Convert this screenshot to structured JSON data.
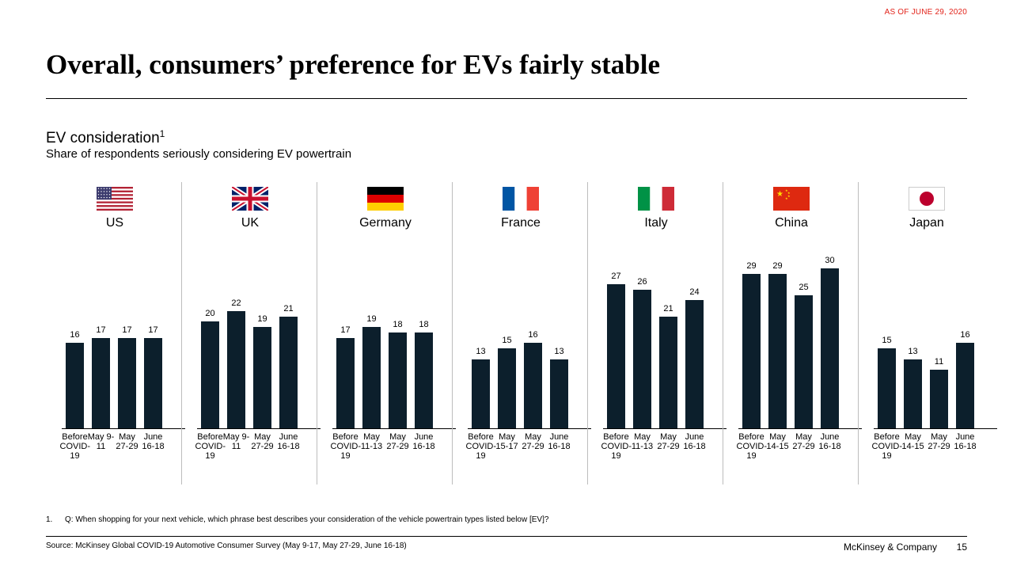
{
  "as_of": "AS OF JUNE 29, 2020",
  "title": "Overall, consumers’ preference for EVs fairly stable",
  "subtitle": {
    "main": "EV consideration",
    "sup": "1",
    "sub": "Share of respondents seriously considering EV powertrain"
  },
  "footnote": {
    "number": "1.",
    "text": "Q: When shopping for your next vehicle, which phrase best describes your consideration of the vehicle powertrain types listed below [EV]?"
  },
  "source": "Source: McKinsey Global COVID-19 Automotive Consumer Survey (May 9-17, May 27-29, June 16-18)",
  "brand": "McKinsey & Company",
  "page_number": "15",
  "colors": {
    "bar": "#0c1f2c",
    "accent": "#e2231a",
    "divider": "#bdbdbd"
  },
  "chart_data": {
    "type": "bar",
    "title": "EV consideration",
    "ylabel": "Share of respondents seriously considering EV powertrain",
    "ylim": [
      0,
      30
    ],
    "panels": [
      {
        "country": "US",
        "flag": "us-flag-icon",
        "categories": [
          "Before COVID-19",
          "May 9-11",
          "May 27-29",
          "June 16-18"
        ],
        "values": [
          16,
          17,
          17,
          17
        ]
      },
      {
        "country": "UK",
        "flag": "uk-flag-icon",
        "categories": [
          "Before COVID-19",
          "May 9-11",
          "May 27-29",
          "June 16-18"
        ],
        "values": [
          20,
          22,
          19,
          21
        ]
      },
      {
        "country": "Germany",
        "flag": "germany-flag-icon",
        "categories": [
          "Before COVID-19",
          "May 11-13",
          "May 27-29",
          "June 16-18"
        ],
        "values": [
          17,
          19,
          18,
          18
        ]
      },
      {
        "country": "France",
        "flag": "france-flag-icon",
        "categories": [
          "Before COVID-19",
          "May 15-17",
          "May 27-29",
          "June 16-18"
        ],
        "values": [
          13,
          15,
          16,
          13
        ]
      },
      {
        "country": "Italy",
        "flag": "italy-flag-icon",
        "categories": [
          "Before COVID-19",
          "May 11-13",
          "May 27-29",
          "June 16-18"
        ],
        "values": [
          27,
          26,
          21,
          24
        ]
      },
      {
        "country": "China",
        "flag": "china-flag-icon",
        "categories": [
          "Before COVID-19",
          "May 14-15",
          "May 27-29",
          "June 16-18"
        ],
        "values": [
          29,
          29,
          25,
          30
        ]
      },
      {
        "country": "Japan",
        "flag": "japan-flag-icon",
        "categories": [
          "Before COVID-19",
          "May 14-15",
          "May 27-29",
          "June 16-18"
        ],
        "values": [
          15,
          13,
          11,
          16
        ]
      }
    ]
  }
}
